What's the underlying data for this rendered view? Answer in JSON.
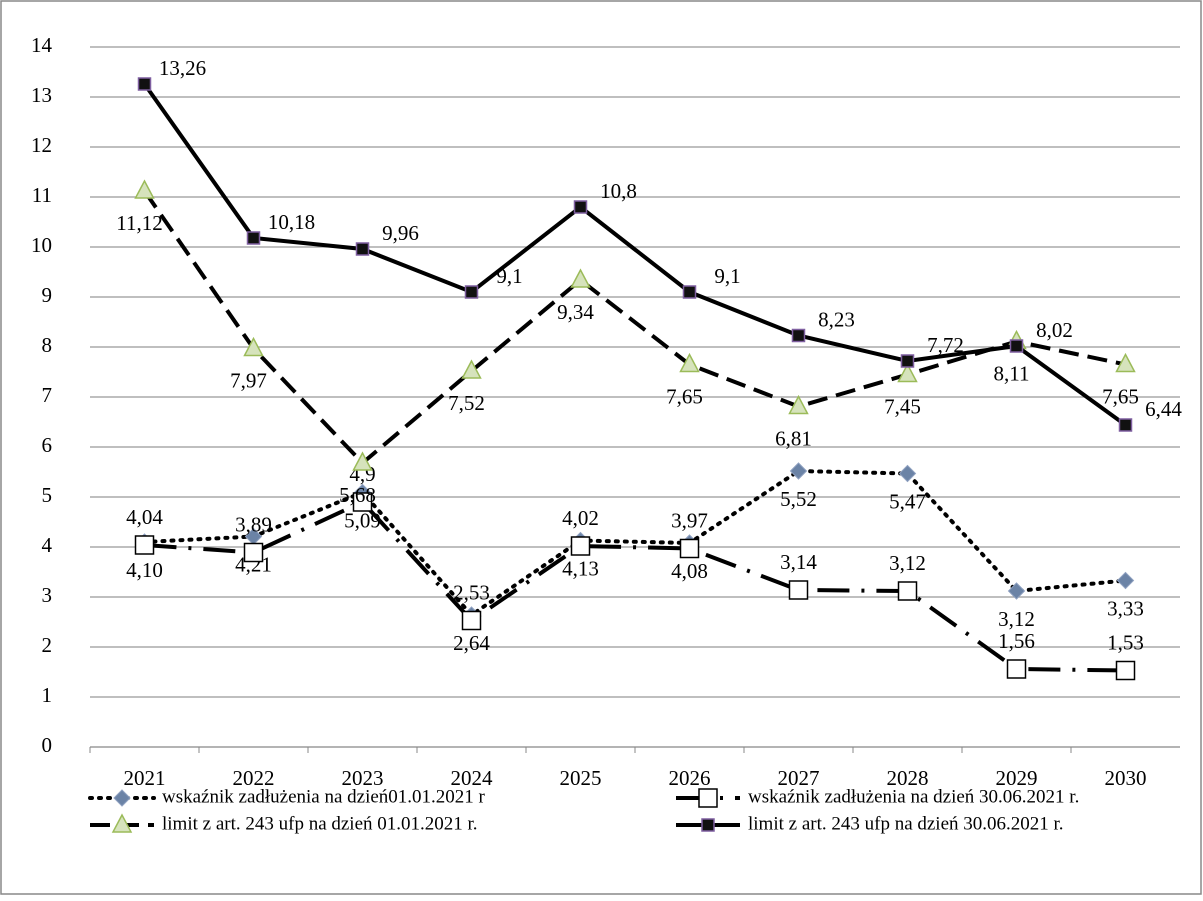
{
  "chart_data": {
    "type": "line",
    "categories": [
      "2021",
      "2022",
      "2023",
      "2024",
      "2025",
      "2026",
      "2027",
      "2028",
      "2029",
      "2030"
    ],
    "ylim": [
      0,
      14
    ],
    "yticks": [
      0,
      1,
      2,
      3,
      4,
      5,
      6,
      7,
      8,
      9,
      10,
      11,
      12,
      13,
      14
    ],
    "grid": true,
    "legend": "bottom",
    "series": [
      {
        "name": "wskaźnik zadłużenia na dzień01.01.2021 r",
        "color": "#6b83a6",
        "marker": "diamond",
        "dash": "dotted",
        "values": [
          4.1,
          4.21,
          5.09,
          2.64,
          4.13,
          4.08,
          5.52,
          5.47,
          3.12,
          3.33
        ],
        "value_labels": [
          "4,10",
          "4,21",
          "5,09",
          "2,64",
          "4,13",
          "4,08",
          "5,52",
          "5,47",
          "3,12",
          "3,33"
        ]
      },
      {
        "name": "wskaźnik zadłużenia na dzień 30.06.2021 r.",
        "color": "#000000",
        "marker": "open-square",
        "dash": "dash-dot",
        "values": [
          4.04,
          3.89,
          4.9,
          2.53,
          4.02,
          3.97,
          3.14,
          3.12,
          1.56,
          1.53
        ],
        "value_labels": [
          "4,04",
          "3,89",
          "4,9",
          "2,53",
          "4,02",
          "3,97",
          "3,14",
          "3,12",
          "1,56",
          "1,53"
        ]
      },
      {
        "name": "limit z art. 243 ufp na dzień 01.01.2021 r.",
        "color": "#000000",
        "marker": "triangle",
        "dash": "dashed",
        "values": [
          11.12,
          7.97,
          5.68,
          7.52,
          9.34,
          7.65,
          6.81,
          7.45,
          8.11,
          7.65
        ],
        "value_labels": [
          "11,12",
          "7,97",
          "5,68",
          "7,52",
          "9,34",
          "7,65",
          "6,81",
          "7,45",
          "8,11",
          "7,65"
        ]
      },
      {
        "name": "limit z art. 243 ufp na dzień 30.06.2021 r.",
        "color": "#000000",
        "marker": "filled-square",
        "dash": "solid",
        "values": [
          13.26,
          10.18,
          9.96,
          9.1,
          10.8,
          9.1,
          8.23,
          7.72,
          8.02,
          6.44
        ],
        "value_labels": [
          "13,26",
          "10,18",
          "9,96",
          "9,1",
          "10,8",
          "9,1",
          "8,23",
          "7,72",
          "8,02",
          "6,44"
        ]
      }
    ]
  }
}
